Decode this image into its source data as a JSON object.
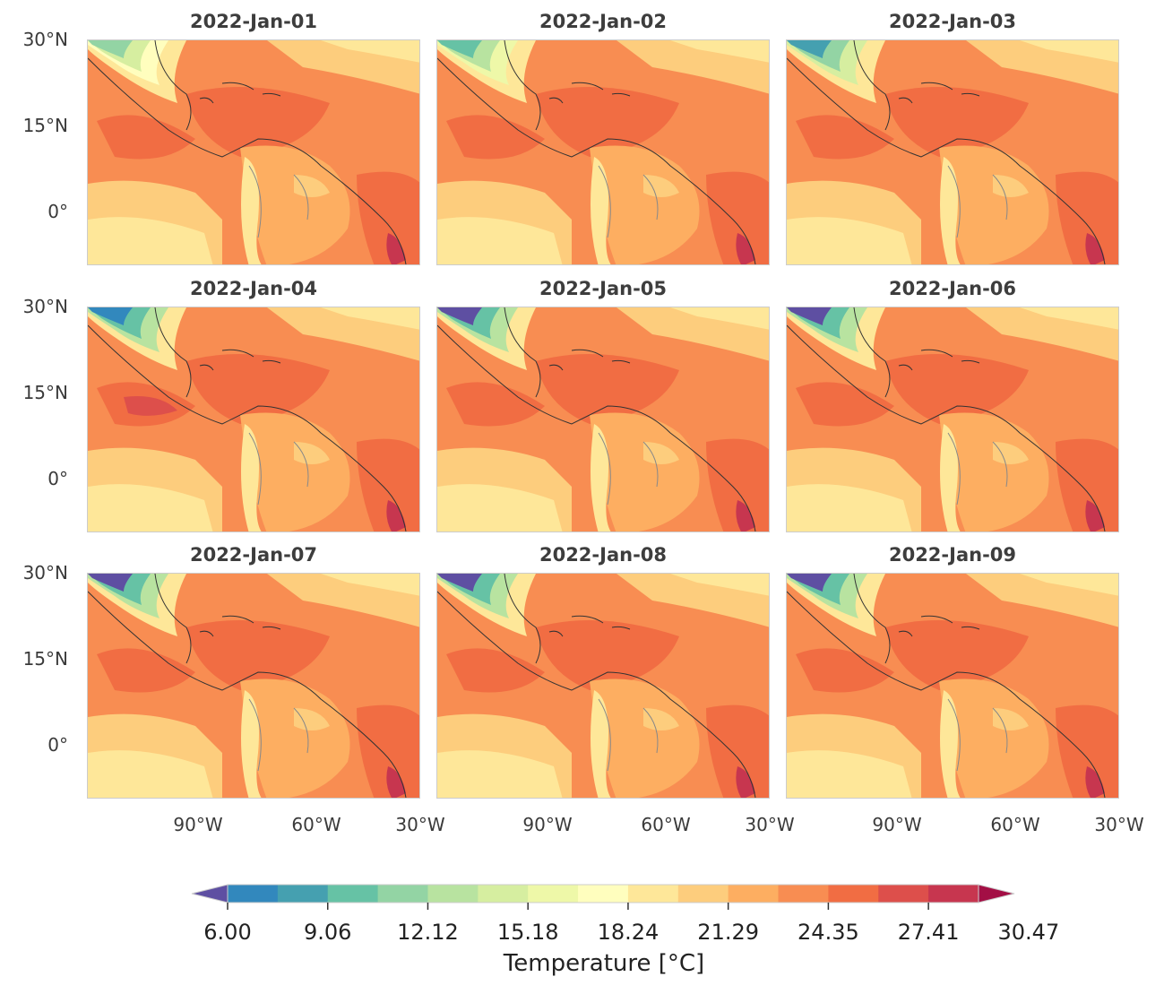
{
  "panels": [
    {
      "title": "2022-Jan-01"
    },
    {
      "title": "2022-Jan-02"
    },
    {
      "title": "2022-Jan-03"
    },
    {
      "title": "2022-Jan-04"
    },
    {
      "title": "2022-Jan-05"
    },
    {
      "title": "2022-Jan-06"
    },
    {
      "title": "2022-Jan-07"
    },
    {
      "title": "2022-Jan-08"
    },
    {
      "title": "2022-Jan-09"
    }
  ],
  "lat_ticks": [
    "30°N",
    "15°N",
    "0°"
  ],
  "lon_ticks": [
    "90°W",
    "60°W",
    "30°W"
  ],
  "colorbar": {
    "label": "Temperature [°C]",
    "tick_labels": [
      "6.00",
      "9.06",
      "12.12",
      "15.18",
      "18.24",
      "21.29",
      "24.35",
      "27.41",
      "30.47"
    ],
    "colors": [
      "#5e4fa2",
      "#3288bd",
      "#45a0b0",
      "#66c2a5",
      "#93d4a4",
      "#b8e3a0",
      "#d6eea0",
      "#eef8a8",
      "#fffebe",
      "#fee799",
      "#fdcd7d",
      "#fdae61",
      "#f88d52",
      "#f16d43",
      "#dd4f4b",
      "#c7364f",
      "#a30f45"
    ]
  }
}
